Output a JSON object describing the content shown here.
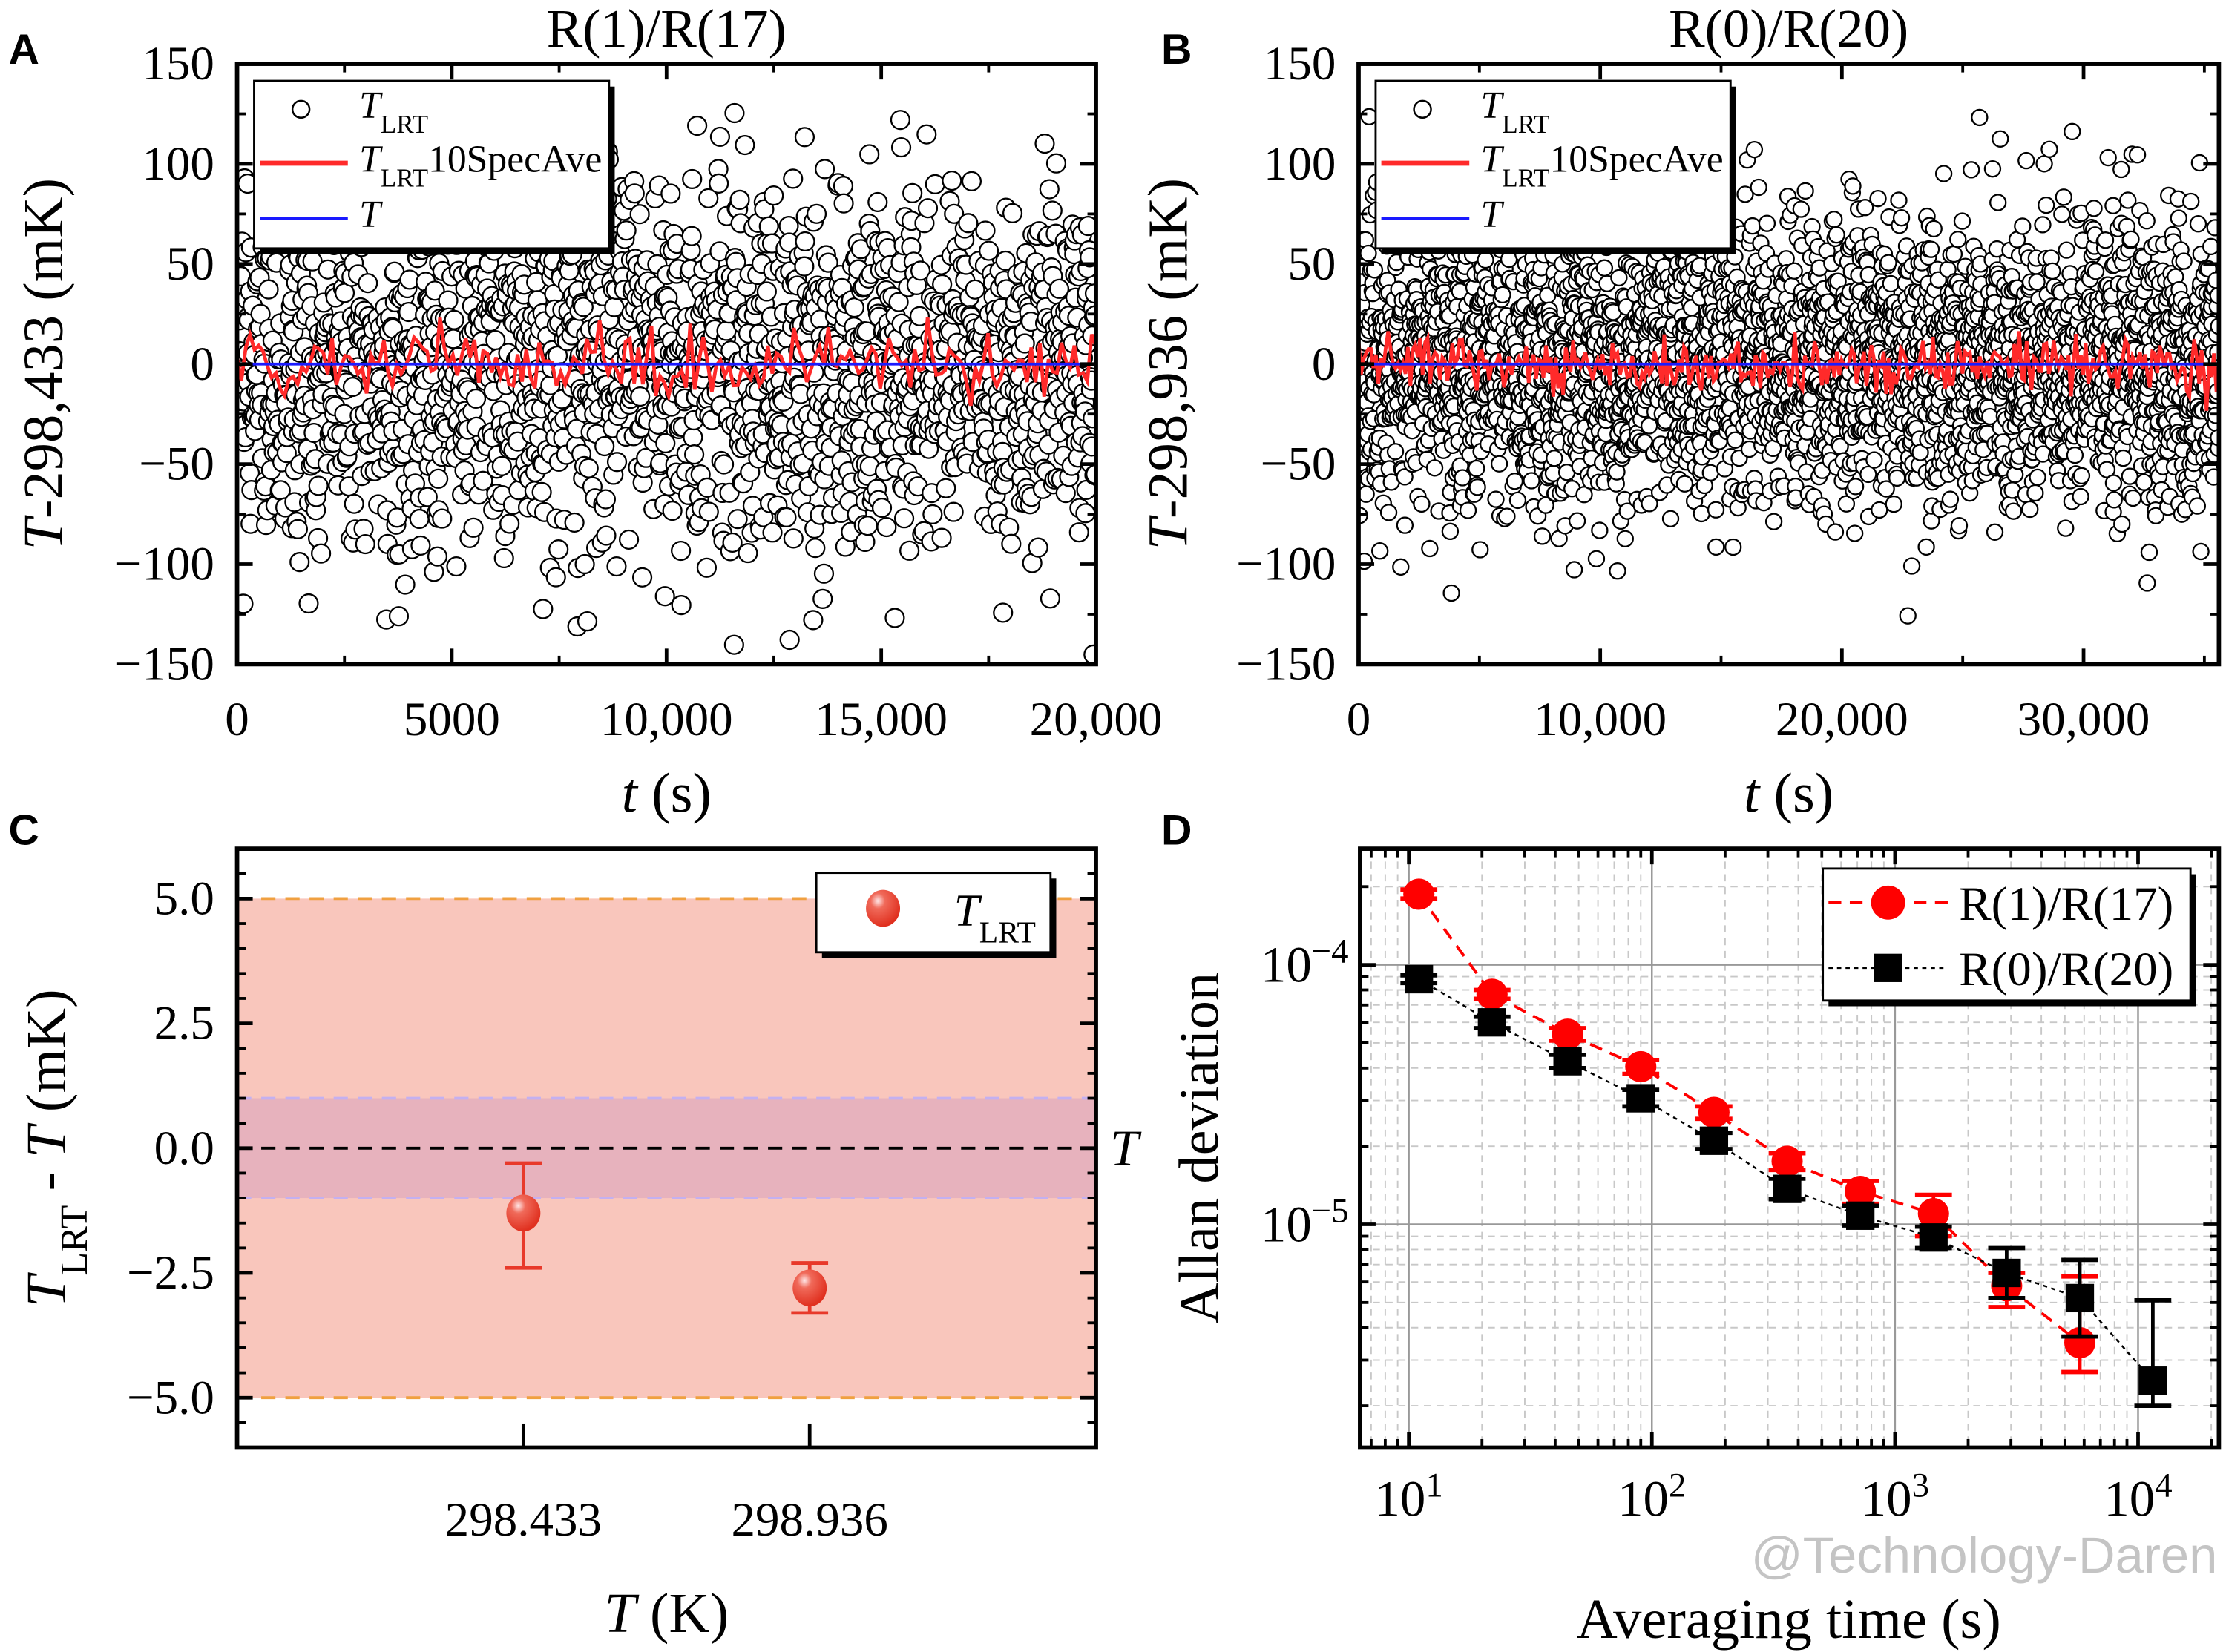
{
  "chart_data": [
    {
      "panel": "A",
      "type": "scatter",
      "title": "R(1)/R(17)",
      "xlabel": {
        "italic": "t",
        "text": " (s)"
      },
      "ylabel": {
        "italic": "T",
        "text": "-298,433 (mK)"
      },
      "xlim": [
        0,
        20000
      ],
      "ylim": [
        -150,
        150
      ],
      "xticks": [
        0,
        5000,
        10000,
        15000,
        20000
      ],
      "xtick_labels": [
        "0",
        "5000",
        "10,000",
        "15,000",
        "20,000"
      ],
      "yticks": [
        -150,
        -100,
        -50,
        0,
        50,
        100,
        150
      ],
      "ytick_labels": [
        "−150",
        "−100",
        "−50",
        "0",
        "50",
        "100",
        "150"
      ],
      "legend_position": "top-left",
      "legend": [
        {
          "italic": "T",
          "sub": "LRT",
          "text": ""
        },
        {
          "italic": "T",
          "sub": "LRT",
          "text": "10SpecAve"
        },
        {
          "italic": "T",
          "text": ""
        }
      ],
      "series": [
        {
          "kind": "open-circles",
          "distribution": "approximately normal noise",
          "mean": 0,
          "sd": 45,
          "count": 2000,
          "color": "#000000"
        },
        {
          "kind": "line",
          "distribution": "approximately normal noise",
          "mean": 0,
          "sd": 8,
          "count": 200,
          "color": "#ff2a2a"
        },
        {
          "kind": "line",
          "constant": 0,
          "color": "#1a1aff"
        }
      ]
    },
    {
      "panel": "B",
      "type": "scatter",
      "title": "R(0)/R(20)",
      "xlabel": {
        "italic": "t",
        "text": " (s)"
      },
      "ylabel": {
        "italic": "T",
        "text": "-298,936 (mK)"
      },
      "xlim": [
        0,
        35600
      ],
      "ylim": [
        -150,
        150
      ],
      "xticks": [
        0,
        10000,
        20000,
        30000
      ],
      "xtick_labels": [
        "0",
        "10,000",
        "20,000",
        "30,000"
      ],
      "yticks": [
        -150,
        -100,
        -50,
        0,
        50,
        100,
        150
      ],
      "ytick_labels": [
        "−150",
        "−100",
        "−50",
        "0",
        "50",
        "100",
        "150"
      ],
      "legend_position": "top-left",
      "legend": [
        {
          "italic": "T",
          "sub": "LRT",
          "text": ""
        },
        {
          "italic": "T",
          "sub": "LRT",
          "text": "10SpecAve"
        },
        {
          "italic": "T",
          "text": ""
        }
      ],
      "series": [
        {
          "kind": "open-circles",
          "distribution": "approximately normal noise",
          "mean": 0,
          "sd": 35,
          "count": 3500,
          "color": "#000000"
        },
        {
          "kind": "line",
          "distribution": "approximately normal noise",
          "mean": 0,
          "sd": 7,
          "count": 350,
          "color": "#ff2a2a"
        },
        {
          "kind": "line",
          "constant": 0,
          "color": "#1a1aff"
        }
      ]
    },
    {
      "panel": "C",
      "type": "scatter",
      "xlabel": {
        "italic": "T",
        "text": " (K)"
      },
      "ylabel": {
        "italic": "T",
        "sub": "LRT",
        "text": " - ",
        "italic2": "T",
        "text2": " (mK)"
      },
      "categories": [
        "298.433",
        "298.936"
      ],
      "ylim": [
        -6,
        6
      ],
      "yticks": [
        -5,
        -2.5,
        0,
        2.5,
        5
      ],
      "ytick_labels": [
        "−5.0",
        "−2.5",
        "0.0",
        "2.5",
        "5.0"
      ],
      "right_label": {
        "italic": "T"
      },
      "legend_position": "top-right",
      "legend": [
        {
          "italic": "T",
          "sub": "LRT",
          "text": ""
        }
      ],
      "bands": [
        {
          "low": -5,
          "high": 5,
          "color": "#f9c6bc",
          "edge": "#f0a040"
        },
        {
          "low": -1,
          "high": 1,
          "color": "#e7b2bd",
          "edge": "#c4b0f0"
        }
      ],
      "reference_line": 0,
      "series": [
        {
          "values": [
            -1.3,
            -2.8
          ],
          "err_high": [
            -0.3,
            -2.3
          ],
          "err_low": [
            -2.4,
            -3.3
          ],
          "color": "#e8392a"
        }
      ]
    },
    {
      "panel": "D",
      "type": "line",
      "xlabel": {
        "text": "Averaging time (s)"
      },
      "ylabel": {
        "text": "Allan deviation"
      },
      "xscale": "log",
      "yscale": "log",
      "xlim": [
        6.3,
        21500
      ],
      "ylim": [
        1.38e-06,
        0.00028
      ],
      "grid": true,
      "xticks": [
        10,
        100,
        1000,
        10000
      ],
      "xtick_labels": [
        {
          "base": "10",
          "exp": "1"
        },
        {
          "base": "10",
          "exp": "2"
        },
        {
          "base": "10",
          "exp": "3"
        },
        {
          "base": "10",
          "exp": "4"
        }
      ],
      "yticks": [
        1e-05,
        0.0001
      ],
      "ytick_labels": [
        {
          "base": "10",
          "exp": "−5"
        },
        {
          "base": "10",
          "exp": "−4"
        }
      ],
      "legend_position": "top-right",
      "series": [
        {
          "name": "R(1)/R(17)",
          "marker": "circle",
          "line": "dash",
          "color": "#ff0000",
          "x": [
            11,
            22,
            45,
            90,
            180,
            360,
            720,
            1440,
            2880,
            5760
          ],
          "y": [
            0.000187,
            7.7e-05,
            5.4e-05,
            4.05e-05,
            2.7e-05,
            1.75e-05,
            1.34e-05,
            1.1e-05,
            5.8e-06,
            3.5e-06
          ],
          "err_low": [
            0.00018,
            7.4e-05,
            5.1e-05,
            3.8e-05,
            2.55e-05,
            1.62e-05,
            1.2e-05,
            9e-06,
            4.8e-06,
            2.7e-06
          ],
          "err_high": [
            0.000195,
            8e-05,
            5.7e-05,
            4.3e-05,
            2.85e-05,
            1.88e-05,
            1.47e-05,
            1.3e-05,
            6.5e-06,
            6.3e-06
          ]
        },
        {
          "name": "R(0)/R(20)",
          "marker": "square",
          "line": "dot",
          "color": "#000000",
          "x": [
            11,
            22,
            45,
            90,
            180,
            360,
            720,
            1440,
            2880,
            5760,
            11500
          ],
          "y": [
            8.8e-05,
            6e-05,
            4.25e-05,
            3.06e-05,
            2.1e-05,
            1.37e-05,
            1.08e-05,
            8.9e-06,
            6.5e-06,
            5.2e-06,
            2.5e-06
          ],
          "err_low": [
            8.5e-05,
            5.7e-05,
            4e-05,
            2.85e-05,
            1.95e-05,
            1.25e-05,
            9.9e-06,
            8.1e-06,
            5.2e-06,
            3.7e-06,
            2e-06
          ],
          "err_high": [
            9.1e-05,
            6.3e-05,
            4.5e-05,
            3.3e-05,
            2.25e-05,
            1.5e-05,
            1.18e-05,
            9.8e-06,
            8.1e-06,
            7.3e-06,
            5.1e-06
          ]
        }
      ]
    }
  ],
  "panel_letters": [
    "A",
    "B",
    "C",
    "D"
  ],
  "watermark": "@Technology-Daren"
}
